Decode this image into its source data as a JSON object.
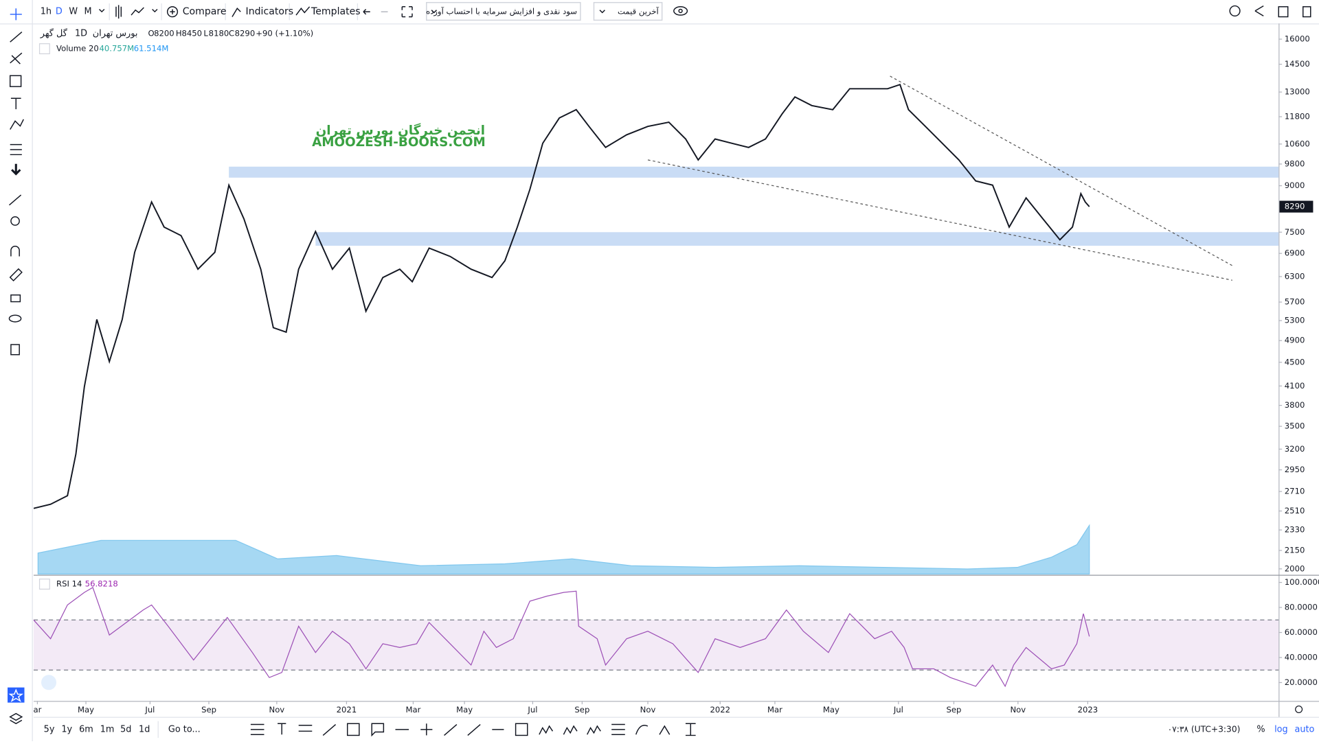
{
  "toolbar": {
    "intervals": [
      "1h",
      "D",
      "W",
      "M"
    ],
    "compare": "Compare",
    "indicators": "Indicators",
    "templates": "Templates",
    "adjustment": "سود نقدی و افزایش سرمایه با احتساب آورده",
    "price_type": "آخرین قیمت"
  },
  "legend": {
    "symbol": "گل گهر",
    "exchange": "بورس تهران",
    "interval": "1D",
    "open_label": "O",
    "open": 8200,
    "high_label": "H",
    "high": 8450,
    "low_label": "L",
    "low": 8180,
    "close_label": "C",
    "close": 8290,
    "change": "+90 (+1.10%)",
    "volume_title": "Volume 20",
    "volume_ma": "40.757M",
    "volume": "61.514M",
    "rsi_title": "RSI 14"
  },
  "watermark": {
    "line1": "انجمن خبرگان بورس تهران",
    "line2": "AMOOZESH-BOORS.COM"
  },
  "bottom_bar": {
    "ranges": [
      "5y",
      "1y",
      "6m",
      "1m",
      "5d",
      "1d"
    ],
    "goto": "Go to...",
    "clock": "۰۷:۳۸ (UTC+3:30)",
    "percent": "%",
    "log": "log",
    "auto": "auto"
  },
  "chart_data": [
    {
      "type": "line",
      "log_scale": true,
      "color": "#131722",
      "x": [
        0.33,
        0.87,
        1.41,
        1.68,
        1.95,
        2.35,
        2.75,
        3.16,
        3.56,
        4.1,
        4.5,
        5.04,
        5.58,
        6.12,
        6.57,
        7.05,
        7.59,
        7.99,
        8.4,
        8.8,
        9.34,
        9.88,
        10.42,
        10.95,
        11.49,
        12.03,
        12.43,
        12.97,
        13.64,
        14.31,
        14.98,
        15.39,
        15.79,
        16.19,
        16.6,
        17.13,
        17.67,
        18.08,
        18.61,
        19.28,
        19.96,
        20.63,
        21.17,
        21.57,
        22.11,
        22.65,
        23.18,
        23.72,
        24.25,
        24.66,
        25.2,
        25.87,
        26.41,
        26.94,
        27.62,
        28.02,
        28.29,
        28.83,
        29.37,
        29.9,
        30.44,
        30.98,
        31.51,
        32.05,
        32.59,
        33.13,
        33.53,
        33.8,
        33.94,
        34.07
      ],
      "values": [
        2536,
        2577,
        2666,
        3138,
        4089,
        5325,
        4512,
        5325,
        6930,
        8445,
        7650,
        7400,
        6486,
        6930,
        9020,
        7900,
        6486,
        5155,
        5066,
        6486,
        7520,
        6486,
        7045,
        5500,
        6276,
        6486,
        6174,
        7045,
        6818,
        6486,
        6276,
        6704,
        7650,
        8870,
        10630,
        11740,
        12130,
        11360,
        10460,
        10990,
        11360,
        11550,
        10810,
        9960,
        10810,
        10630,
        10460,
        10810,
        11930,
        12750,
        12330,
        12130,
        13170,
        13170,
        13170,
        13390,
        12130,
        11360,
        10630,
        9960,
        9170,
        9020,
        7650,
        8580,
        7900,
        7280,
        7650,
        8725,
        8445,
        8290
      ],
      "xlim": [
        0.33,
        40.12
      ],
      "ylim": [
        1960,
        16900
      ],
      "yticks": [
        2000,
        2150,
        2330,
        2510,
        2710,
        2950,
        3200,
        3500,
        3800,
        4100,
        4500,
        4900,
        5300,
        5700,
        6300,
        6900,
        7500,
        9000,
        9800,
        10600,
        11800,
        13000,
        14500,
        16000
      ],
      "zone_color": "#c9dcf5",
      "zones": [
        {
          "low": 9290,
          "high": 9700,
          "start": 6.57
        },
        {
          "low": 7110,
          "high": 7500,
          "start": 9.34
        }
      ],
      "trendlines": [
        {
          "x": [
            27.7,
            38.7
          ],
          "values": [
            13840,
            6550
          ]
        },
        {
          "x": [
            19.96,
            38.64
          ],
          "values": [
            9960,
            6210
          ]
        }
      ]
    },
    {
      "type": "area",
      "color": "#80c7ee",
      "x": [
        0.47,
        2.48,
        4.1,
        6.79,
        8.13,
        10.01,
        12.7,
        15.39,
        17.54,
        19.42,
        22.11,
        24.8,
        27.48,
        30.17,
        31.77,
        32.86,
        33.67,
        34.07
      ],
      "values": [
        17.6,
        28.2,
        28.2,
        28.2,
        12.7,
        15.5,
        7,
        8.5,
        12.7,
        7,
        5.6,
        7,
        5.6,
        4.2,
        5.6,
        14.1,
        24.6,
        40.757
      ],
      "xlim": [
        0.33,
        40.12
      ],
      "ylim": [
        0,
        460
      ]
    },
    {
      "type": "line",
      "color": "#9c4fb6",
      "x": [
        0.33,
        0.87,
        1.41,
        1.95,
        2.22,
        2.75,
        3.29,
        3.83,
        4.1,
        4.63,
        5.44,
        5.98,
        6.52,
        7.32,
        7.86,
        8.26,
        8.8,
        9.34,
        9.88,
        10.42,
        10.95,
        11.49,
        12.03,
        12.57,
        12.97,
        13.64,
        14.31,
        14.72,
        15.12,
        15.66,
        16.19,
        16.73,
        17.27,
        17.67,
        17.75,
        18.34,
        18.61,
        19.28,
        19.96,
        20.76,
        21.57,
        22.11,
        22.91,
        23.72,
        24.39,
        24.93,
        25.73,
        26.41,
        27.21,
        27.75,
        28.15,
        28.42,
        29.1,
        29.63,
        30.44,
        30.98,
        31.38,
        31.65,
        32.05,
        32.86,
        33.27,
        33.67,
        33.88,
        34.07
      ],
      "values": [
        70,
        55,
        82,
        92,
        96,
        58,
        68,
        78,
        82,
        65,
        38,
        55,
        72,
        44,
        24,
        28,
        65,
        44,
        61,
        51,
        31,
        51,
        48,
        51,
        68,
        51,
        34,
        61,
        48,
        55,
        85,
        89,
        92,
        93,
        65,
        55,
        34,
        55,
        61,
        51,
        28,
        55,
        48,
        55,
        78,
        61,
        44,
        75,
        55,
        61,
        48,
        31,
        31,
        24,
        17,
        34,
        17,
        34,
        48,
        31,
        34,
        51,
        75,
        56.8218
      ],
      "xlim": [
        0.33,
        40.12
      ],
      "ylim": [
        6,
        104.7
      ],
      "yticks": [
        {
          "value": 100,
          "label": "100.0000"
        },
        {
          "value": 80,
          "label": "80.0000"
        },
        {
          "value": 60,
          "label": "60.0000"
        },
        {
          "value": 40,
          "label": "40.0000"
        },
        {
          "value": 20,
          "label": "20.0000"
        }
      ],
      "band": {
        "low": 30,
        "high": 70
      },
      "xticks": [
        {
          "value": 0.45,
          "label": "ar"
        },
        {
          "value": 2,
          "label": "May"
        },
        {
          "value": 4.05,
          "label": "Jul"
        },
        {
          "value": 5.93,
          "label": "Sep"
        },
        {
          "value": 8.1,
          "label": "Nov"
        },
        {
          "value": 10.33,
          "label": "2021"
        },
        {
          "value": 12.46,
          "label": "Mar"
        },
        {
          "value": 14.1,
          "label": "May"
        },
        {
          "value": 16.28,
          "label": "Jul"
        },
        {
          "value": 17.86,
          "label": "Sep"
        },
        {
          "value": 19.96,
          "label": "Nov"
        },
        {
          "value": 22.27,
          "label": "2022"
        },
        {
          "value": 24.02,
          "label": "Mar"
        },
        {
          "value": 25.82,
          "label": "May"
        },
        {
          "value": 27.97,
          "label": "Jul"
        },
        {
          "value": 29.74,
          "label": "Sep"
        },
        {
          "value": 31.79,
          "label": "Nov"
        },
        {
          "value": 34.02,
          "label": "2023"
        }
      ]
    }
  ]
}
